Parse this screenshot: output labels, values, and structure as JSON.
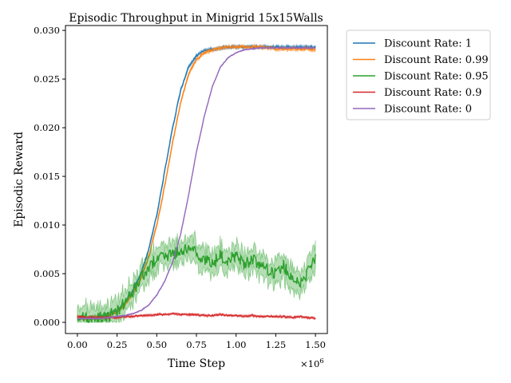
{
  "chart_data": {
    "type": "line",
    "title": "Episodic Throughput in Minigrid 15x15Walls",
    "xlabel": "Time Step",
    "ylabel": "Episodic Reward",
    "x_multiplier_label": "×10",
    "x_multiplier_exp": "6",
    "xlim": [
      -0.075,
      1.575
    ],
    "ylim": [
      -0.00115,
      0.0305
    ],
    "xticks": [
      0.0,
      0.25,
      0.5,
      0.75,
      1.0,
      1.25,
      1.5
    ],
    "xtick_labels": [
      "0.00",
      "0.25",
      "0.50",
      "0.75",
      "1.00",
      "1.25",
      "1.50"
    ],
    "yticks": [
      0.0,
      0.005,
      0.01,
      0.015,
      0.02,
      0.025,
      0.03
    ],
    "ytick_labels": [
      "0.000",
      "0.005",
      "0.010",
      "0.015",
      "0.020",
      "0.025",
      "0.030"
    ],
    "grid": false,
    "legend_position": "outside-top-right",
    "x": [
      0.0,
      0.05,
      0.1,
      0.15,
      0.2,
      0.25,
      0.3,
      0.35,
      0.4,
      0.45,
      0.5,
      0.55,
      0.6,
      0.65,
      0.7,
      0.75,
      0.8,
      0.85,
      0.9,
      0.95,
      1.0,
      1.05,
      1.1,
      1.15,
      1.2,
      1.25,
      1.3,
      1.35,
      1.4,
      1.45,
      1.5
    ],
    "series": [
      {
        "name": "Discount Rate: 1",
        "color": "#1f77b4",
        "values": [
          0.0005,
          0.0004,
          0.0005,
          0.0006,
          0.0008,
          0.0012,
          0.002,
          0.0033,
          0.005,
          0.0075,
          0.011,
          0.0155,
          0.02,
          0.0238,
          0.0262,
          0.0274,
          0.0279,
          0.0281,
          0.0282,
          0.0283,
          0.0283,
          0.0283,
          0.0283,
          0.0283,
          0.0283,
          0.0283,
          0.0283,
          0.0283,
          0.0283,
          0.0283,
          0.0283
        ]
      },
      {
        "name": "Discount Rate: 0.99",
        "color": "#ff7f0e",
        "values": [
          0.0005,
          0.0004,
          0.0005,
          0.0005,
          0.0007,
          0.0011,
          0.0018,
          0.003,
          0.0045,
          0.0068,
          0.01,
          0.014,
          0.0185,
          0.0225,
          0.0255,
          0.027,
          0.0277,
          0.028,
          0.0282,
          0.0283,
          0.0283,
          0.0283,
          0.0283,
          0.0283,
          0.0282,
          0.0281,
          0.0281,
          0.0281,
          0.0281,
          0.0281,
          0.028
        ]
      },
      {
        "name": "Discount Rate: 0.95",
        "color": "#2ca02c",
        "values": [
          0.0004,
          0.0004,
          0.0004,
          0.0005,
          0.0007,
          0.0012,
          0.002,
          0.0032,
          0.0045,
          0.0058,
          0.0065,
          0.0068,
          0.007,
          0.0072,
          0.0075,
          0.0072,
          0.0065,
          0.006,
          0.0068,
          0.0062,
          0.007,
          0.0058,
          0.0065,
          0.006,
          0.0055,
          0.005,
          0.0058,
          0.0045,
          0.0042,
          0.005,
          0.0065
        ]
      },
      {
        "name": "Discount Rate: 0.9",
        "color": "#d62728",
        "values": [
          0.0006,
          0.0005,
          0.0005,
          0.0005,
          0.0005,
          0.0005,
          0.0006,
          0.0006,
          0.0007,
          0.0007,
          0.0008,
          0.0008,
          0.0009,
          0.0008,
          0.0008,
          0.0008,
          0.0007,
          0.0007,
          0.0008,
          0.0007,
          0.0007,
          0.0006,
          0.0007,
          0.0006,
          0.0006,
          0.0006,
          0.0006,
          0.0005,
          0.0006,
          0.0005,
          0.0004
        ]
      },
      {
        "name": "Discount Rate: 0",
        "color": "#9467bd",
        "values": [
          0.0004,
          0.0004,
          0.0004,
          0.0004,
          0.0005,
          0.0006,
          0.0007,
          0.0009,
          0.0012,
          0.0018,
          0.0028,
          0.0042,
          0.0062,
          0.009,
          0.013,
          0.0175,
          0.0212,
          0.0242,
          0.0262,
          0.0272,
          0.0277,
          0.028,
          0.0281,
          0.0282,
          0.0282,
          0.0282,
          0.0282,
          0.0282,
          0.0282,
          0.0282,
          0.0282
        ]
      }
    ],
    "variability": [
      0.0003,
      0.0003,
      0.0022,
      0.0002,
      0.0001
    ]
  }
}
